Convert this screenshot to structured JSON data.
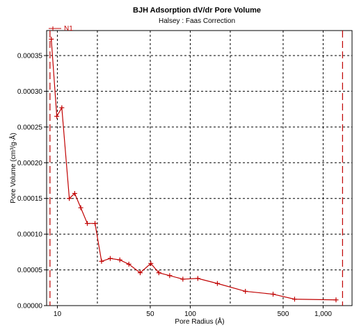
{
  "chart_data": {
    "type": "line",
    "title": "BJH Adsorption dV/dr Pore Volume",
    "subtitle": "Halsey : Faas Correction",
    "xlabel": "Pore Radius (Å)",
    "ylabel": "Pore Volume (cm³/g·Å)",
    "x_scale": "log",
    "xlim": [
      8.3,
      1650
    ],
    "ylim": [
      0,
      0.000385
    ],
    "grid": true,
    "legend_position": "top-left",
    "x_ticks": [
      {
        "value": 10,
        "label": "10"
      },
      {
        "value": 50,
        "label": "50"
      },
      {
        "value": 100,
        "label": "100"
      },
      {
        "value": 500,
        "label": "500"
      },
      {
        "value": 1000,
        "label": "1,000"
      }
    ],
    "x_gridlines": [
      10,
      20,
      50,
      100,
      200,
      500,
      1000
    ],
    "y_ticks": [
      {
        "value": 0,
        "label": "0.00000"
      },
      {
        "value": 5e-05,
        "label": "0.00005"
      },
      {
        "value": 0.0001,
        "label": "0.00010"
      },
      {
        "value": 0.00015,
        "label": "0.00015"
      },
      {
        "value": 0.0002,
        "label": "0.00020"
      },
      {
        "value": 0.00025,
        "label": "0.00025"
      },
      {
        "value": 0.0003,
        "label": "0.00030"
      },
      {
        "value": 0.00035,
        "label": "0.00035"
      }
    ],
    "reference_lines_x": [
      8.8,
      1400
    ],
    "series": [
      {
        "name": "N1",
        "color": "#c00000",
        "points": [
          [
            9.0,
            0.000373
          ],
          [
            9.9,
            0.000265
          ],
          [
            10.8,
            0.000277
          ],
          [
            12.3,
            0.00015
          ],
          [
            13.5,
            0.000157
          ],
          [
            15.0,
            0.000137
          ],
          [
            16.8,
            0.000115
          ],
          [
            19.2,
            0.000115
          ],
          [
            21.5,
            6.2e-05
          ],
          [
            25.0,
            6.6e-05
          ],
          [
            29.5,
            6.4e-05
          ],
          [
            34.5,
            5.8e-05
          ],
          [
            42.0,
            4.6e-05
          ],
          [
            50.5,
            5.9e-05
          ],
          [
            58.0,
            4.6e-05
          ],
          [
            70.0,
            4.2e-05
          ],
          [
            88.0,
            3.7e-05
          ],
          [
            114.0,
            3.8e-05
          ],
          [
            160.0,
            3.1e-05
          ],
          [
            260.0,
            2e-05
          ],
          [
            420.0,
            1.6e-05
          ],
          [
            610.0,
            9e-06
          ],
          [
            1250.0,
            8e-06
          ]
        ]
      }
    ]
  }
}
